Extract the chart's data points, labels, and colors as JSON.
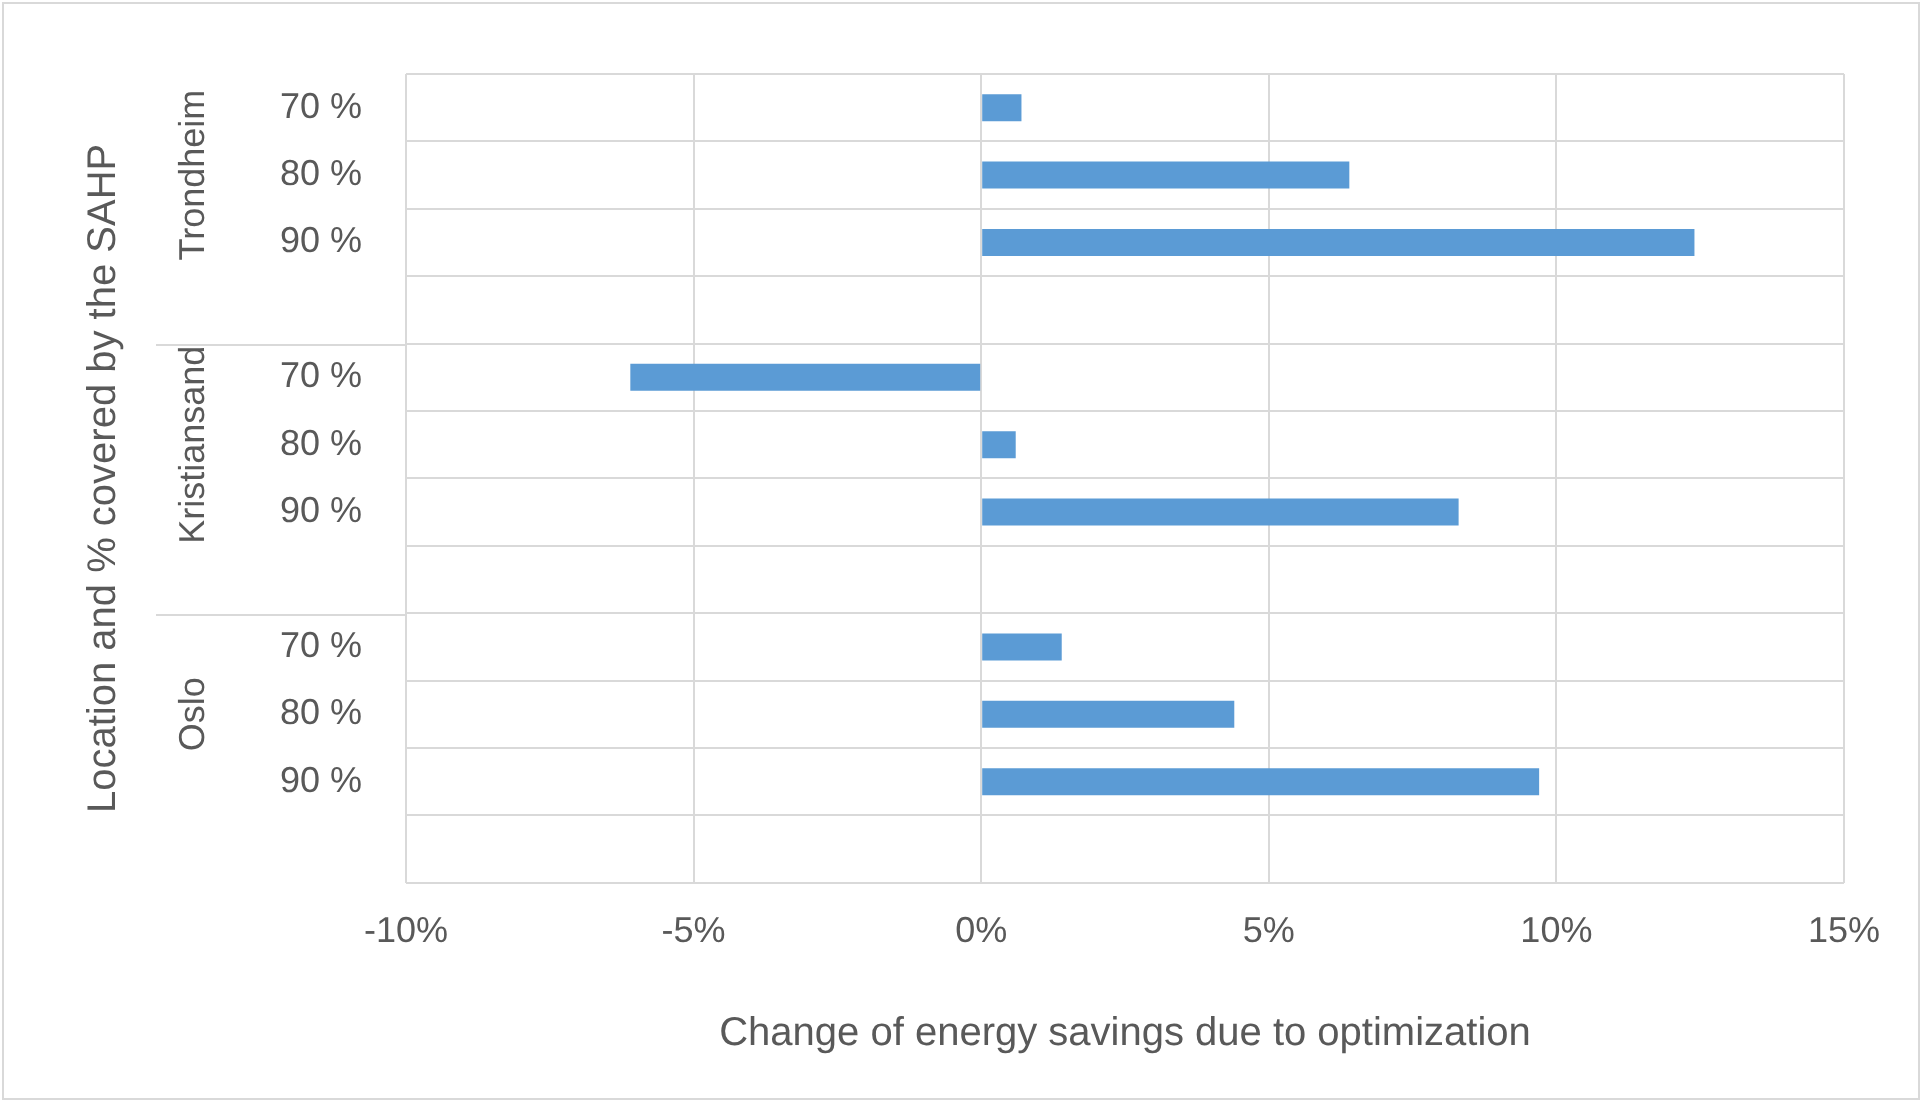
{
  "chart_data": {
    "type": "bar",
    "orientation": "horizontal",
    "xlabel": "Change of energy savings due to optimization",
    "ylabel": "Location and % covered by the SAHP",
    "categories": [
      "70 %",
      "80 %",
      "90 %",
      null,
      "70 %",
      "80 %",
      "90 %",
      null,
      "70 %",
      "80 %",
      "90 %",
      null
    ],
    "values": [
      0.7,
      6.4,
      12.4,
      null,
      -6.1,
      0.6,
      8.3,
      null,
      1.4,
      4.4,
      9.7,
      null
    ],
    "color": "#5b9bd5",
    "xlim": [
      -10,
      15
    ],
    "xticks": [
      {
        "value": -10,
        "label": "-10%"
      },
      {
        "value": -5,
        "label": "-5%"
      },
      {
        "value": 0,
        "label": "0%"
      },
      {
        "value": 5,
        "label": "5%"
      },
      {
        "value": 10,
        "label": "10%"
      },
      {
        "value": 15,
        "label": "15%"
      }
    ],
    "annotations": [
      "Trondheim",
      "Kristiansand",
      "Oslo"
    ],
    "grid": true,
    "legend": false
  }
}
